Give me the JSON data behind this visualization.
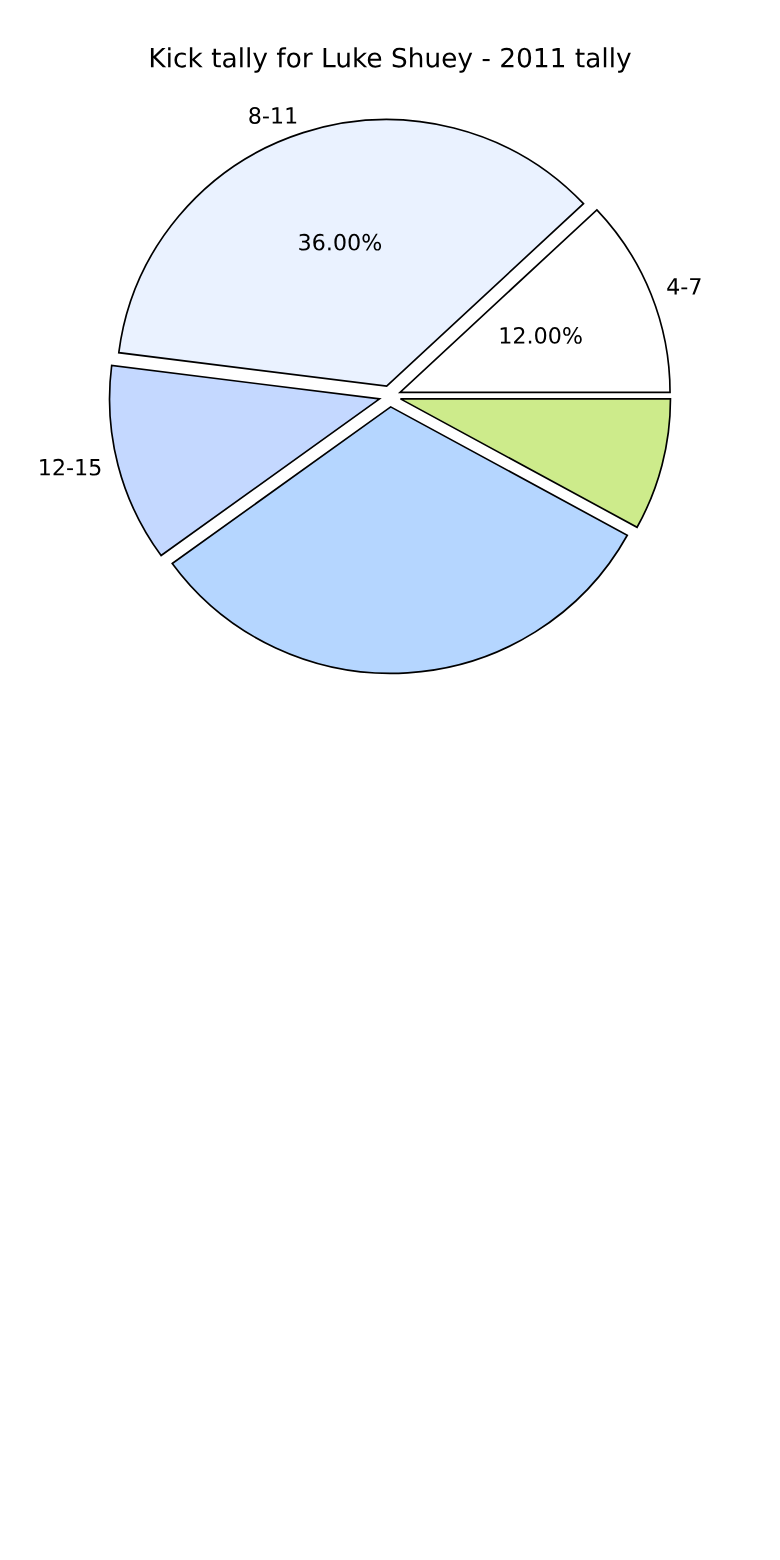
{
  "chart_data": {
    "type": "pie",
    "title": "Kick tally for Luke Shuey - 2011 tally",
    "categories": [
      "4-7",
      "8-11",
      "12-15",
      null,
      null
    ],
    "values": [
      12,
      36,
      12,
      32,
      8
    ],
    "colors": [
      "#ffffff",
      "#eaf2ff",
      "#c4d8ff",
      "#b5d6ff",
      "#cdeb8b"
    ],
    "value_labels": [
      "12.00%",
      "36.00%",
      null,
      null,
      null
    ]
  }
}
